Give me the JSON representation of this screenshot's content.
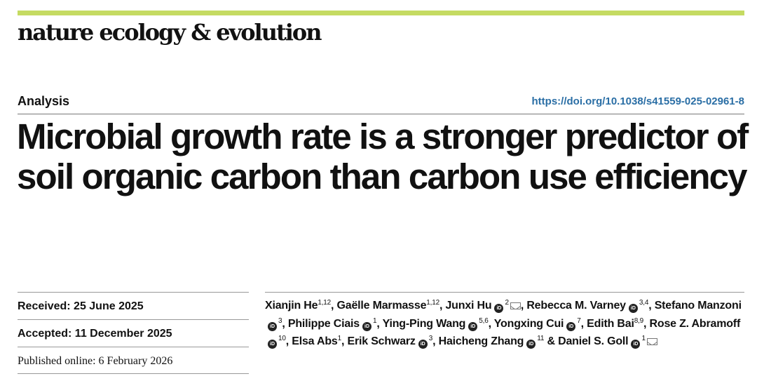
{
  "header": {
    "journal": "nature ecology & evolution",
    "article_type": "Analysis",
    "doi": "https://doi.org/10.1038/s41559-025-02961-8",
    "accent_color": "#c5db62",
    "doi_color": "#2a6ea5"
  },
  "title": "Microbial growth rate is a stronger predictor of soil organic carbon than carbon use efficiency",
  "dates": {
    "received": "Received: 25 June 2025",
    "accepted": "Accepted: 11 December 2025",
    "published": "Published online: 6 February 2026"
  },
  "authors": [
    {
      "name": "Xianjin He",
      "aff": "1,12",
      "orcid": false,
      "email": false,
      "sep": ", "
    },
    {
      "name": "Gaëlle Marmasse",
      "aff": "1,12",
      "orcid": false,
      "email": false,
      "sep": ", "
    },
    {
      "name": "Junxi Hu",
      "aff": "2",
      "orcid": true,
      "email": true,
      "sep": ", "
    },
    {
      "name": "Rebecca M. Varney",
      "aff": "3,4",
      "orcid": true,
      "email": false,
      "sep": ", "
    },
    {
      "name": "Stefano Manzoni",
      "aff": "3",
      "orcid": true,
      "email": false,
      "sep": ", "
    },
    {
      "name": "Philippe Ciais",
      "aff": "1",
      "orcid": true,
      "email": false,
      "sep": ", "
    },
    {
      "name": "Ying-Ping Wang",
      "aff": "5,6",
      "orcid": true,
      "email": false,
      "sep": ", "
    },
    {
      "name": "Yongxing Cui",
      "aff": "7",
      "orcid": true,
      "email": false,
      "sep": ", "
    },
    {
      "name": "Edith Bai",
      "aff": "8,9",
      "orcid": false,
      "email": false,
      "sep": ", "
    },
    {
      "name": "Rose Z. Abramoff",
      "aff": "10",
      "orcid": true,
      "email": false,
      "sep": ", "
    },
    {
      "name": "Elsa Abs",
      "aff": "1",
      "orcid": false,
      "email": false,
      "sep": ", "
    },
    {
      "name": "Erik Schwarz",
      "aff": "3",
      "orcid": true,
      "email": false,
      "sep": ", "
    },
    {
      "name": "Haicheng Zhang",
      "aff": "11",
      "orcid": true,
      "email": false,
      "sep": " & "
    },
    {
      "name": "Daniel S. Goll",
      "aff": "1",
      "orcid": true,
      "email": true,
      "sep": ""
    }
  ],
  "icons": {
    "orcid": "orcid-icon",
    "email": "email-icon",
    "orcid_label": "iD"
  }
}
